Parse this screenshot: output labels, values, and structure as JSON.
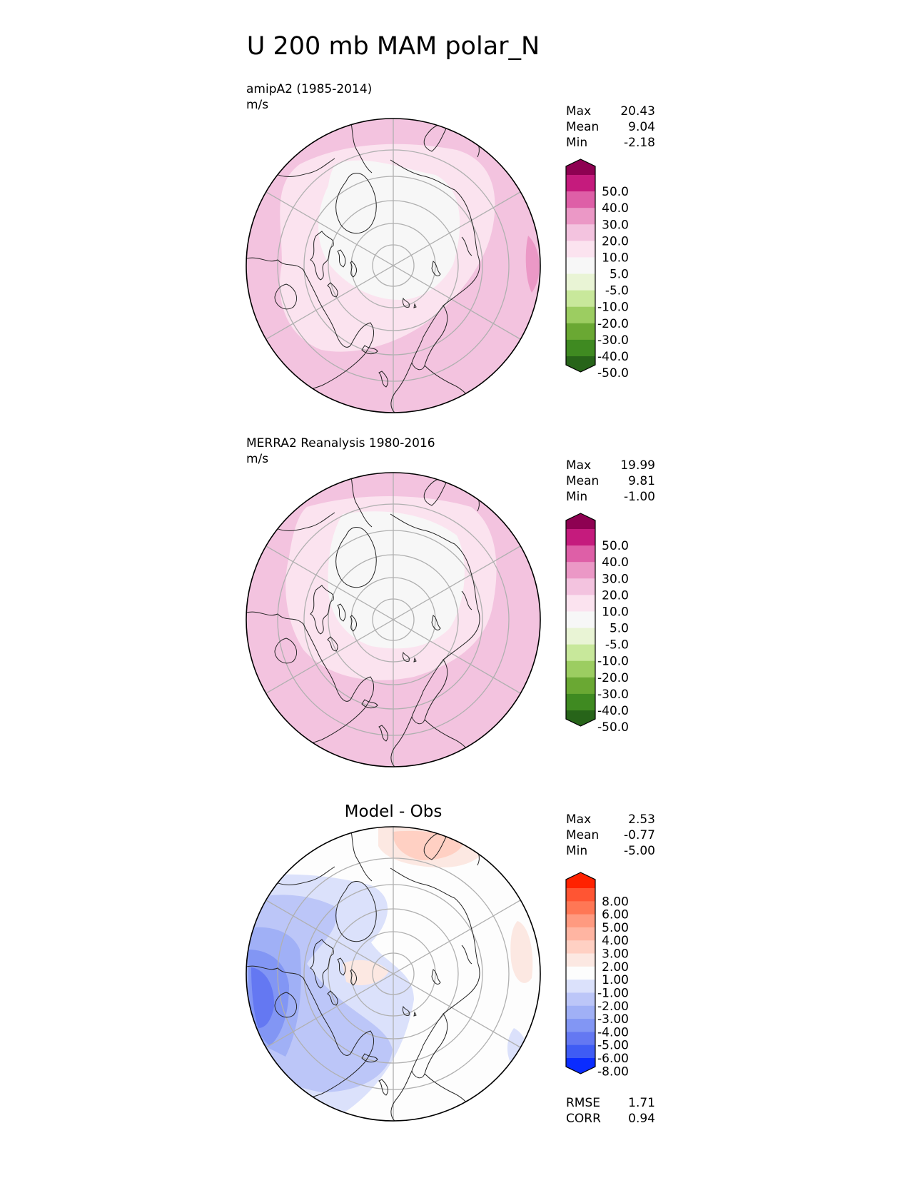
{
  "title": "U 200 mb MAM polar_N",
  "panels": [
    {
      "id": "test",
      "heading": "amipA2 (1985-2014)",
      "units": "m/s",
      "centered_title": "",
      "stats": [
        {
          "label": "Max",
          "value": "20.43"
        },
        {
          "label": "Mean",
          "value": "9.04"
        },
        {
          "label": "Min",
          "value": "-2.18"
        }
      ],
      "colorbar": {
        "ticks": [
          "50.0",
          "40.0",
          "30.0",
          "20.0",
          "10.0",
          "5.0",
          "-5.0",
          "-10.0",
          "-20.0",
          "-30.0",
          "-40.0",
          "-50.0"
        ],
        "colors": [
          "#8e0152",
          "#c51b7d",
          "#de5fa7",
          "#eb98c6",
          "#f3c3df",
          "#fbe3ef",
          "#f7f7f7",
          "#e9f4d5",
          "#c8e89b",
          "#9ccd61",
          "#6aa833",
          "#3f8a21",
          "#276419"
        ]
      },
      "extra_stats": []
    },
    {
      "id": "reference",
      "heading": "MERRA2 Reanalysis 1980-2016",
      "units": "m/s",
      "centered_title": "",
      "stats": [
        {
          "label": "Max",
          "value": "19.99"
        },
        {
          "label": "Mean",
          "value": "9.81"
        },
        {
          "label": "Min",
          "value": "-1.00"
        }
      ],
      "colorbar": {
        "ticks": [
          "50.0",
          "40.0",
          "30.0",
          "20.0",
          "10.0",
          "5.0",
          "-5.0",
          "-10.0",
          "-20.0",
          "-30.0",
          "-40.0",
          "-50.0"
        ],
        "colors": [
          "#8e0152",
          "#c51b7d",
          "#de5fa7",
          "#eb98c6",
          "#f3c3df",
          "#fbe3ef",
          "#f7f7f7",
          "#e9f4d5",
          "#c8e89b",
          "#9ccd61",
          "#6aa833",
          "#3f8a21",
          "#276419"
        ]
      },
      "extra_stats": []
    },
    {
      "id": "diff",
      "heading": "",
      "units": "",
      "centered_title": "Model - Obs",
      "stats": [
        {
          "label": "Max",
          "value": "2.53"
        },
        {
          "label": "Mean",
          "value": "-0.77"
        },
        {
          "label": "Min",
          "value": "-5.00"
        }
      ],
      "colorbar": {
        "ticks": [
          "8.00",
          "6.00",
          "5.00",
          "4.00",
          "3.00",
          "2.00",
          "1.00",
          "-1.00",
          "-2.00",
          "-3.00",
          "-4.00",
          "-5.00",
          "-6.00",
          "-8.00"
        ],
        "colors": [
          "#ff2200",
          "#ff5533",
          "#ff7755",
          "#ff9a80",
          "#ffb5a2",
          "#ffd0c3",
          "#fce8e2",
          "#fdfdfd",
          "#dbe1fb",
          "#bcc6f8",
          "#a0b0f6",
          "#8296f4",
          "#6478f2",
          "#3f5cf4",
          "#0a2cff"
        ]
      },
      "extra_stats": [
        {
          "label": "RMSE",
          "value": "1.71"
        },
        {
          "label": "CORR",
          "value": "0.94"
        }
      ]
    }
  ],
  "chart_data": [
    {
      "type": "heatmap",
      "title": "amipA2 (1985-2014)",
      "units": "m/s",
      "projection": "north polar stereographic",
      "field": "U 200 mb MAM",
      "stats": {
        "max": 20.43,
        "mean": 9.04,
        "min": -2.18
      },
      "levels": [
        -50,
        -40,
        -30,
        -20,
        -10,
        -5,
        5,
        10,
        20,
        30,
        40,
        50
      ],
      "colorbar_extend": "both",
      "gridlines": true,
      "coastlines": true
    },
    {
      "type": "heatmap",
      "title": "MERRA2 Reanalysis 1980-2016",
      "units": "m/s",
      "projection": "north polar stereographic",
      "field": "U 200 mb MAM",
      "stats": {
        "max": 19.99,
        "mean": 9.81,
        "min": -1.0
      },
      "levels": [
        -50,
        -40,
        -30,
        -20,
        -10,
        -5,
        5,
        10,
        20,
        30,
        40,
        50
      ],
      "colorbar_extend": "both",
      "gridlines": true,
      "coastlines": true
    },
    {
      "type": "heatmap",
      "title": "Model - Obs",
      "projection": "north polar stereographic",
      "field": "U 200 mb MAM difference",
      "stats": {
        "max": 2.53,
        "mean": -0.77,
        "min": -5.0,
        "rmse": 1.71,
        "corr": 0.94
      },
      "levels": [
        -8,
        -6,
        -5,
        -4,
        -3,
        -2,
        -1,
        1,
        2,
        3,
        4,
        5,
        6,
        8
      ],
      "colorbar_extend": "both",
      "gridlines": true,
      "coastlines": true
    }
  ]
}
